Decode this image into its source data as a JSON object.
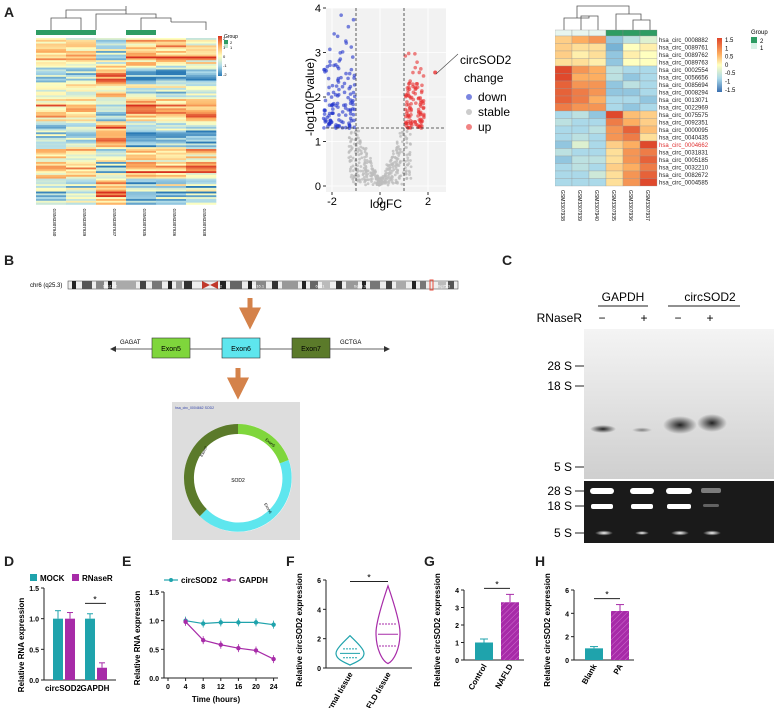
{
  "panels": {
    "A": "A",
    "B": "B",
    "C": "C",
    "D": "D",
    "E": "E",
    "F": "F",
    "G": "G",
    "H": "H"
  },
  "heatmap1": {
    "legend_title": "Group",
    "legend_ticks": [
      "2",
      "1",
      "0",
      "-1",
      "-2"
    ],
    "group_ticks": [
      "2",
      "1"
    ],
    "samples": [
      "GSM3307940",
      "GSM3307939",
      "GSM3307937",
      "GSM3307935",
      "GSM3307936",
      "GSM3307938"
    ],
    "group_colors": [
      "#2e9c63",
      "#2e9c63",
      "#ffffff",
      "#2e9c63",
      "#ffffff",
      "#ffffff"
    ]
  },
  "volcano": {
    "xlabel": "logFC",
    "ylabel": "-log10(Pvalue)",
    "xticks": [
      "-2",
      "0",
      "2"
    ],
    "yticks": [
      "0",
      "1",
      "2",
      "3",
      "4"
    ],
    "annotation": "circSOD2",
    "legend_title": "change",
    "legend": [
      {
        "label": "down",
        "color": "#2233cc"
      },
      {
        "label": "stable",
        "color": "#cccccc"
      },
      {
        "label": "up",
        "color": "#e83030"
      }
    ]
  },
  "heatmap2": {
    "legend_title": "Group",
    "legend_ticks": [
      "1.5",
      "1",
      "0.5",
      "0",
      "-0.5",
      "-1",
      "-1.5"
    ],
    "group_ticks": [
      "2",
      "1"
    ],
    "rows": [
      "hsa_circ_0008882",
      "hsa_circ_0089761",
      "hsa_circ_0089762",
      "hsa_circ_0089763",
      "hsa_circ_0002554",
      "hsa_circ_0056656",
      "hsa_circ_0085694",
      "hsa_circ_0008294",
      "hsa_circ_0013071",
      "hsa_circ_0022969",
      "hsa_circ_0075575",
      "hsa_circ_0092351",
      "hsa_circ_0000095",
      "hsa_circ_0040435",
      "hsa_circ_0004662",
      "hsa_circ_0031831",
      "hsa_circ_0005185",
      "hsa_circ_0032210",
      "hsa_circ_0082672",
      "hsa_circ_0004585"
    ],
    "highlight_row": "hsa_circ_0004662",
    "cols": [
      "GSM3307938",
      "GSM3307939",
      "GSM3307940",
      "GSM3307935",
      "GSM3307936",
      "GSM3307937"
    ]
  },
  "schematic": {
    "chromosome": "chr6 (q25.3)",
    "band_labels": [
      "16q12.2",
      "6q13.2",
      "6q16.1",
      "6q21",
      "6q23.3",
      "6q25.3"
    ],
    "left_seq": "GAGAT",
    "right_seq": "GCTGA",
    "exons": [
      "Exon5",
      "Exon6",
      "Exon7"
    ],
    "circ_caption": "hsa_circ_0004662 SOD2",
    "circ_center": "SOD2",
    "circ_labels": [
      "Exon5",
      "Exon6",
      "Exon7"
    ]
  },
  "gel": {
    "groups": [
      "GAPDH",
      "circSOD2"
    ],
    "row_label": "RNaseR",
    "lane_signs": [
      "−",
      "+",
      "−",
      "+"
    ],
    "markers_top": [
      "28 S",
      "18 S",
      "5 S"
    ],
    "markers_bottom": [
      "28 S",
      "18 S",
      "5 S"
    ]
  },
  "chart_D": {
    "type": "bar",
    "ylabel": "Relative RNA expression",
    "categories": [
      "circSOD2",
      "GAPDH"
    ],
    "series": [
      {
        "name": "MOCK",
        "values": [
          1.0,
          1.0
        ],
        "errors": [
          0.13,
          0.08
        ]
      },
      {
        "name": "RNaseR",
        "values": [
          1.0,
          0.2
        ],
        "errors": [
          0.1,
          0.08
        ]
      }
    ],
    "ylim": [
      0,
      1.5
    ],
    "yticks": [
      "0.0",
      "0.5",
      "1.0",
      "1.5"
    ],
    "sig": "*"
  },
  "chart_E": {
    "type": "line",
    "xlabel": "Time (hours)",
    "ylabel": "Relative RNA expression",
    "x": [
      4,
      8,
      12,
      16,
      20,
      24
    ],
    "xticks": [
      "0",
      "4",
      "8",
      "12",
      "16",
      "20",
      "24"
    ],
    "series": [
      {
        "name": "circSOD2",
        "values": [
          1.0,
          0.95,
          0.97,
          0.97,
          0.97,
          0.93
        ]
      },
      {
        "name": "GAPDH",
        "values": [
          0.98,
          0.66,
          0.58,
          0.52,
          0.48,
          0.33
        ]
      }
    ],
    "ylim": [
      0,
      1.5
    ],
    "yticks": [
      "0.0",
      "0.5",
      "1.0",
      "1.5"
    ],
    "sig": "*"
  },
  "chart_F": {
    "type": "violin",
    "ylabel": "Relative circSOD2 expression",
    "categories": [
      "Normal tissue",
      "NAFLD tissue"
    ],
    "values": [
      1.0,
      2.3
    ],
    "ylim": [
      0,
      6
    ],
    "yticks": [
      "0",
      "2",
      "4",
      "6"
    ],
    "sig": "*"
  },
  "chart_G": {
    "type": "bar",
    "ylabel": "Relative circSOD2 expression",
    "categories": [
      "Control",
      "NAFLD"
    ],
    "values": [
      1.0,
      3.3
    ],
    "errors": [
      0.2,
      0.45
    ],
    "ylim": [
      0,
      4
    ],
    "yticks": [
      "0",
      "1",
      "2",
      "3",
      "4"
    ],
    "sig": "*"
  },
  "chart_H": {
    "type": "bar",
    "ylabel": "Relative circSOD2 expression",
    "categories": [
      "Blank",
      "PA"
    ],
    "values": [
      1.0,
      4.2
    ],
    "errors": [
      0.15,
      0.55
    ],
    "ylim": [
      0,
      6
    ],
    "yticks": [
      "0",
      "2",
      "4",
      "6"
    ],
    "sig": "*"
  },
  "colors": {
    "teal": "#1fa3ac",
    "magenta": "#a72ba8",
    "cyan": "#4ecfd8",
    "purple": "#9b2f9b"
  }
}
